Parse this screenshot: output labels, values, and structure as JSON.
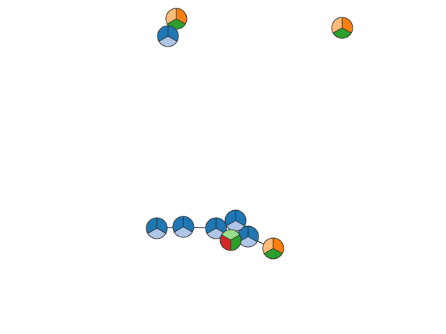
{
  "palette": {
    "orange": "#ff7f0e",
    "light-orange": "#ffbb78",
    "green": "#2ca02c",
    "light-green": "#98df8a",
    "blue": "#1f77b4",
    "light-blue": "#aec7e8",
    "red": "#d62728"
  },
  "nodes": [
    {
      "id": "n1",
      "slices": [
        "orange",
        "green",
        "light-orange"
      ]
    },
    {
      "id": "n2",
      "slices": [
        "blue",
        "light-blue",
        "blue"
      ]
    },
    {
      "id": "n3",
      "slices": [
        "orange",
        "green",
        "light-orange"
      ]
    },
    {
      "id": "n4",
      "slices": [
        "blue",
        "light-blue",
        "blue"
      ]
    },
    {
      "id": "n5",
      "slices": [
        "blue",
        "light-blue",
        "blue"
      ]
    },
    {
      "id": "n6",
      "slices": [
        "blue",
        "light-blue",
        "blue"
      ]
    },
    {
      "id": "n7",
      "slices": [
        "blue",
        "light-blue",
        "blue"
      ]
    },
    {
      "id": "n8",
      "slices": [
        "blue",
        "light-blue",
        "blue"
      ]
    },
    {
      "id": "n9",
      "slices": [
        "green",
        "red",
        "light-green"
      ]
    },
    {
      "id": "n10",
      "slices": [
        "orange",
        "green",
        "light-orange"
      ]
    }
  ],
  "edges": [
    [
      "n4",
      "n5"
    ],
    [
      "n5",
      "n6"
    ],
    [
      "n6",
      "n7"
    ],
    [
      "n7",
      "n9"
    ],
    [
      "n9",
      "n8"
    ],
    [
      "n8",
      "n10"
    ]
  ]
}
